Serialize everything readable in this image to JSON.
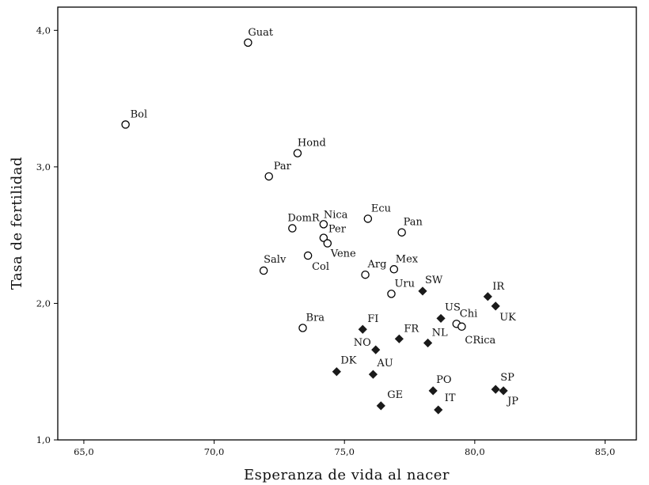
{
  "chart_data": {
    "type": "scatter",
    "xlabel": "Esperanza de vida al nacer",
    "ylabel": "Tasa de fertilidad",
    "xlim": [
      64.0,
      86.2
    ],
    "ylim": [
      1.0,
      4.17
    ],
    "x_ticks": [
      "65,0",
      "70,0",
      "75,0",
      "80,0",
      "85,0"
    ],
    "x_tick_values": [
      65,
      70,
      75,
      80,
      85
    ],
    "y_ticks": [
      "1,0",
      "2,0",
      "3,0",
      "4,0"
    ],
    "y_tick_values": [
      1,
      2,
      3,
      4
    ],
    "grid": false,
    "series": [
      {
        "marker": "open-circle",
        "points": [
          {
            "label": "Guat",
            "x": 71.3,
            "y": 3.91,
            "lx": 0,
            "ly": -9,
            "anchor": "start"
          },
          {
            "label": "Bol",
            "x": 66.6,
            "y": 3.31,
            "lx": 6,
            "ly": -9,
            "anchor": "start"
          },
          {
            "label": "Hond",
            "x": 73.2,
            "y": 3.1,
            "lx": 0,
            "ly": -9,
            "anchor": "start"
          },
          {
            "label": "Par",
            "x": 72.1,
            "y": 2.93,
            "lx": 6,
            "ly": -9,
            "anchor": "start"
          },
          {
            "label": "Ecu",
            "x": 75.9,
            "y": 2.62,
            "lx": 4,
            "ly": -9,
            "anchor": "start"
          },
          {
            "label": "DomR",
            "x": 73.0,
            "y": 2.55,
            "lx": -6,
            "ly": -9,
            "anchor": "start"
          },
          {
            "label": "Nica",
            "x": 74.2,
            "y": 2.58,
            "lx": 0,
            "ly": -8,
            "anchor": "start"
          },
          {
            "label": "Pan",
            "x": 77.2,
            "y": 2.52,
            "lx": 2,
            "ly": -9,
            "anchor": "start"
          },
          {
            "label": "Per",
            "x": 74.2,
            "y": 2.48,
            "lx": 6,
            "ly": -7,
            "anchor": "start"
          },
          {
            "label": "Vene",
            "x": 74.35,
            "y": 2.44,
            "lx": 4,
            "ly": 17,
            "anchor": "start"
          },
          {
            "label": "Salv",
            "x": 71.9,
            "y": 2.24,
            "lx": 0,
            "ly": -10,
            "anchor": "start"
          },
          {
            "label": "Col",
            "x": 73.6,
            "y": 2.35,
            "lx": 5,
            "ly": 18,
            "anchor": "start"
          },
          {
            "label": "Mex",
            "x": 76.9,
            "y": 2.25,
            "lx": 2,
            "ly": -9,
            "anchor": "start"
          },
          {
            "label": "Arg",
            "x": 75.8,
            "y": 2.21,
            "lx": 3,
            "ly": -9,
            "anchor": "start"
          },
          {
            "label": "Uru",
            "x": 76.8,
            "y": 2.07,
            "lx": 4,
            "ly": -9,
            "anchor": "start"
          },
          {
            "label": "Bra",
            "x": 73.4,
            "y": 1.82,
            "lx": 4,
            "ly": -9,
            "anchor": "start"
          },
          {
            "label": "Chi",
            "x": 79.3,
            "y": 1.85,
            "lx": 4,
            "ly": -9,
            "anchor": "start"
          },
          {
            "label": "CRica",
            "x": 79.5,
            "y": 1.83,
            "lx": 4,
            "ly": 21,
            "anchor": "start"
          }
        ]
      },
      {
        "marker": "filled-diamond",
        "points": [
          {
            "label": "SW",
            "x": 78.0,
            "y": 2.09,
            "lx": 3,
            "ly": -10,
            "anchor": "start"
          },
          {
            "label": "IR",
            "x": 80.5,
            "y": 2.05,
            "lx": 6,
            "ly": -9,
            "anchor": "start"
          },
          {
            "label": "UK",
            "x": 80.8,
            "y": 1.98,
            "lx": 5,
            "ly": 18,
            "anchor": "start"
          },
          {
            "label": "US",
            "x": 78.7,
            "y": 1.89,
            "lx": 5,
            "ly": -10,
            "anchor": "start"
          },
          {
            "label": "FI",
            "x": 75.7,
            "y": 1.81,
            "lx": 6,
            "ly": -9,
            "anchor": "start"
          },
          {
            "label": "FR",
            "x": 77.1,
            "y": 1.74,
            "lx": 6,
            "ly": -9,
            "anchor": "start"
          },
          {
            "label": "NL",
            "x": 78.2,
            "y": 1.71,
            "lx": 5,
            "ly": -9,
            "anchor": "start"
          },
          {
            "label": "NO",
            "x": 76.2,
            "y": 1.66,
            "lx": -28,
            "ly": -5,
            "anchor": "start"
          },
          {
            "label": "DK",
            "x": 74.7,
            "y": 1.5,
            "lx": 5,
            "ly": -10,
            "anchor": "start"
          },
          {
            "label": "AU",
            "x": 76.1,
            "y": 1.48,
            "lx": 5,
            "ly": -10,
            "anchor": "start"
          },
          {
            "label": "PO",
            "x": 78.4,
            "y": 1.36,
            "lx": 4,
            "ly": -10,
            "anchor": "start"
          },
          {
            "label": "SP",
            "x": 80.8,
            "y": 1.37,
            "lx": 6,
            "ly": -11,
            "anchor": "start"
          },
          {
            "label": "JP",
            "x": 81.1,
            "y": 1.36,
            "lx": 5,
            "ly": 17,
            "anchor": "start"
          },
          {
            "label": "GE",
            "x": 76.4,
            "y": 1.25,
            "lx": 8,
            "ly": -10,
            "anchor": "start"
          },
          {
            "label": "IT",
            "x": 78.6,
            "y": 1.22,
            "lx": 8,
            "ly": -11,
            "anchor": "start"
          }
        ]
      }
    ]
  }
}
